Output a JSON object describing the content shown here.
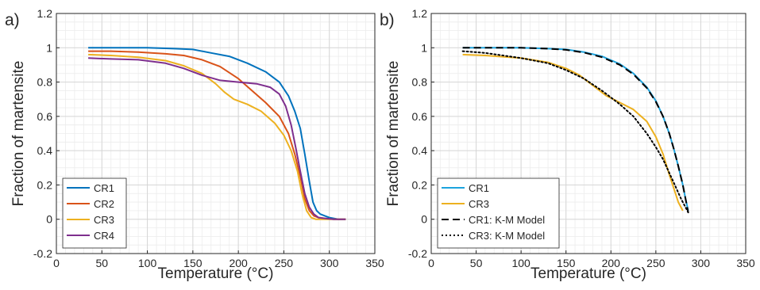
{
  "chart_data": [
    {
      "type": "line",
      "panel_label": "a)",
      "xlabel": "Temperature (°C)",
      "ylabel": "Fraction of martensite",
      "xlim": [
        0,
        350
      ],
      "ylim": [
        -0.2,
        1.2
      ],
      "xticks": [
        0,
        50,
        100,
        150,
        200,
        250,
        300,
        350
      ],
      "yticks": [
        -0.2,
        0,
        0.2,
        0.4,
        0.6,
        0.8,
        1,
        1.2
      ],
      "grid": true,
      "minor_grid": true,
      "legend_position": "bottom-left",
      "series": [
        {
          "name": "CR1",
          "color": "#0072BD",
          "dash": "solid",
          "x": [
            35,
            50,
            70,
            100,
            130,
            150,
            170,
            190,
            210,
            230,
            245,
            255,
            262,
            268,
            273,
            278,
            282,
            286,
            290,
            295,
            300,
            310,
            318
          ],
          "y": [
            1.0,
            1.0,
            1.0,
            1.0,
            0.995,
            0.99,
            0.97,
            0.95,
            0.91,
            0.86,
            0.8,
            0.72,
            0.63,
            0.53,
            0.38,
            0.22,
            0.1,
            0.05,
            0.03,
            0.02,
            0.01,
            0.0,
            0.0
          ]
        },
        {
          "name": "CR2",
          "color": "#D95319",
          "dash": "solid",
          "x": [
            35,
            60,
            90,
            120,
            140,
            160,
            180,
            200,
            215,
            230,
            245,
            255,
            262,
            268,
            273,
            278,
            283,
            288,
            295,
            305,
            318
          ],
          "y": [
            0.98,
            0.98,
            0.975,
            0.965,
            0.955,
            0.93,
            0.89,
            0.82,
            0.75,
            0.68,
            0.6,
            0.5,
            0.38,
            0.25,
            0.12,
            0.05,
            0.02,
            0.01,
            0.005,
            0.0,
            0.0
          ]
        },
        {
          "name": "CR3",
          "color": "#EDB120",
          "dash": "solid",
          "x": [
            35,
            60,
            90,
            120,
            140,
            160,
            175,
            185,
            195,
            210,
            225,
            240,
            250,
            258,
            265,
            270,
            275,
            280,
            285,
            295,
            310,
            318
          ],
          "y": [
            0.96,
            0.955,
            0.945,
            0.925,
            0.895,
            0.85,
            0.79,
            0.74,
            0.7,
            0.67,
            0.63,
            0.56,
            0.49,
            0.4,
            0.28,
            0.15,
            0.05,
            0.01,
            0.0,
            0.0,
            0.0,
            0.0
          ]
        },
        {
          "name": "CR4",
          "color": "#7E2F8E",
          "dash": "solid",
          "x": [
            35,
            60,
            90,
            120,
            140,
            160,
            180,
            200,
            220,
            235,
            245,
            252,
            258,
            263,
            268,
            273,
            278,
            283,
            288,
            295,
            305,
            318
          ],
          "y": [
            0.94,
            0.935,
            0.93,
            0.91,
            0.88,
            0.84,
            0.81,
            0.8,
            0.79,
            0.77,
            0.73,
            0.66,
            0.55,
            0.42,
            0.28,
            0.15,
            0.07,
            0.03,
            0.01,
            0.005,
            0.0,
            0.0
          ]
        }
      ]
    },
    {
      "type": "line",
      "panel_label": "b)",
      "xlabel": "Temperature (°C)",
      "ylabel": "Fraction of martensite",
      "xlim": [
        0,
        350
      ],
      "ylim": [
        -0.2,
        1.2
      ],
      "xticks": [
        0,
        50,
        100,
        150,
        200,
        250,
        300,
        350
      ],
      "yticks": [
        -0.2,
        0,
        0.2,
        0.4,
        0.6,
        0.8,
        1,
        1.2
      ],
      "grid": true,
      "minor_grid": true,
      "legend_position": "bottom-left",
      "series": [
        {
          "name": "CR1",
          "color": "#1CA3DE",
          "dash": "solid",
          "x": [
            35,
            60,
            100,
            130,
            150,
            170,
            190,
            210,
            225,
            240,
            250,
            258,
            265,
            270,
            275,
            280,
            283,
            286
          ],
          "y": [
            1.0,
            1.0,
            1.0,
            0.995,
            0.99,
            0.975,
            0.95,
            0.905,
            0.85,
            0.77,
            0.69,
            0.6,
            0.5,
            0.41,
            0.31,
            0.2,
            0.12,
            0.05
          ]
        },
        {
          "name": "CR3",
          "color": "#EDB120",
          "dash": "solid",
          "x": [
            35,
            60,
            100,
            130,
            150,
            165,
            180,
            195,
            210,
            225,
            240,
            250,
            258,
            265,
            270,
            275,
            280
          ],
          "y": [
            0.96,
            0.955,
            0.94,
            0.915,
            0.88,
            0.84,
            0.78,
            0.72,
            0.68,
            0.64,
            0.57,
            0.48,
            0.38,
            0.26,
            0.18,
            0.1,
            0.05
          ]
        },
        {
          "name": "CR1: K-M Model",
          "color": "#000000",
          "dash": "dashed",
          "x": [
            35,
            60,
            100,
            130,
            150,
            170,
            190,
            210,
            225,
            240,
            250,
            258,
            265,
            270,
            275,
            280,
            283,
            286
          ],
          "y": [
            1.0,
            1.0,
            1.0,
            0.995,
            0.988,
            0.972,
            0.945,
            0.9,
            0.845,
            0.765,
            0.685,
            0.6,
            0.5,
            0.41,
            0.31,
            0.2,
            0.12,
            0.04
          ]
        },
        {
          "name": "CR3: K-M Model",
          "color": "#000000",
          "dash": "dotted",
          "x": [
            35,
            60,
            100,
            130,
            150,
            170,
            190,
            210,
            225,
            240,
            250,
            258,
            265,
            272,
            278,
            283,
            286
          ],
          "y": [
            0.98,
            0.97,
            0.94,
            0.91,
            0.87,
            0.82,
            0.75,
            0.67,
            0.6,
            0.5,
            0.42,
            0.35,
            0.27,
            0.19,
            0.12,
            0.07,
            0.04
          ]
        }
      ]
    }
  ]
}
